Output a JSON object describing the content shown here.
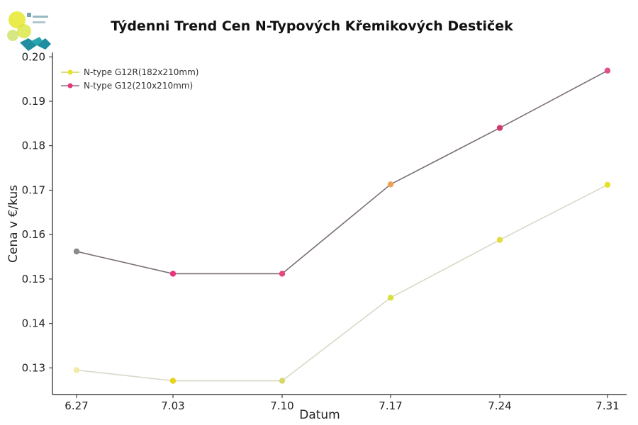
{
  "chart_data": {
    "type": "line",
    "title": "Týdenni Trend Cen N-Typových Křemikových Destiček",
    "xlabel": "Datum",
    "ylabel": "Cena v €/kus",
    "categories": [
      "6.27",
      "7.03",
      "7.10",
      "7.17",
      "7.24",
      "7.31"
    ],
    "ylim": [
      0.124,
      0.201
    ],
    "yticks": [
      0.13,
      0.14,
      0.15,
      0.16,
      0.17,
      0.18,
      0.19,
      0.2
    ],
    "ytick_labels": [
      "0.13",
      "0.14",
      "0.15",
      "0.16",
      "0.17",
      "0.18",
      "0.19",
      "0.20"
    ],
    "grid": false,
    "legend_position": "top-left",
    "series": [
      {
        "name": "N-type G12R(182x210mm)",
        "values": [
          0.1295,
          0.1271,
          0.1271,
          0.1458,
          0.1588,
          0.1712
        ],
        "colors": [
          "#f4e9a6",
          "#e8d21a",
          "#d6d96a",
          "#d9e03a",
          "#e2dc3c",
          "#e6e22a"
        ],
        "line_color": "#d8d8c8"
      },
      {
        "name": "N-type G12(210x210mm)",
        "values": [
          0.1562,
          0.1512,
          0.1512,
          0.1713,
          0.184,
          0.1969
        ],
        "colors": [
          "#8a8a8a",
          "#e8357a",
          "#e8457a",
          "#f0a050",
          "#d03a6a",
          "#e0508a"
        ],
        "line_color": "#7a6f78"
      }
    ]
  },
  "logo": {
    "icon": "wafer-logo-icon"
  }
}
